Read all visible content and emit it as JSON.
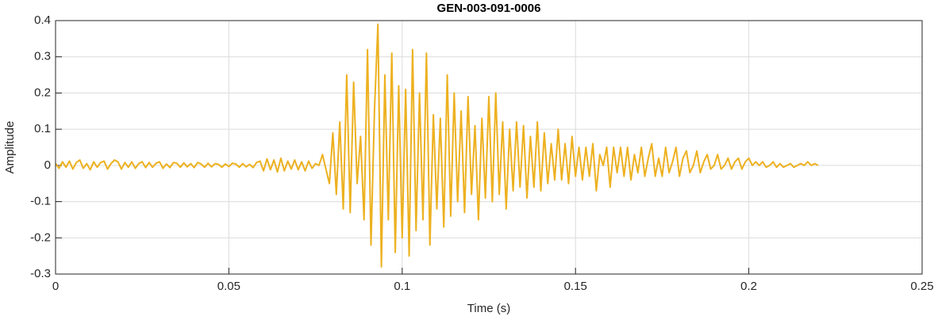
{
  "chart_data": {
    "type": "line",
    "title": "GEN-003-091-0006",
    "xlabel": "Time (s)",
    "ylabel": "Amplitude",
    "xlim": [
      0,
      0.25
    ],
    "ylim": [
      -0.3,
      0.4
    ],
    "xticks": [
      0,
      0.05,
      0.1,
      0.15,
      0.2,
      0.25
    ],
    "yticks": [
      -0.3,
      -0.2,
      -0.1,
      0,
      0.1,
      0.2,
      0.3,
      0.4
    ],
    "grid": true,
    "x": [
      0,
      0.001,
      0.002,
      0.003,
      0.004,
      0.005,
      0.006,
      0.007,
      0.008,
      0.009,
      0.01,
      0.011,
      0.012,
      0.013,
      0.014,
      0.015,
      0.016,
      0.017,
      0.018,
      0.019,
      0.02,
      0.021,
      0.022,
      0.023,
      0.024,
      0.025,
      0.026,
      0.027,
      0.028,
      0.029,
      0.03,
      0.031,
      0.032,
      0.033,
      0.034,
      0.035,
      0.036,
      0.037,
      0.038,
      0.039,
      0.04,
      0.041,
      0.042,
      0.043,
      0.044,
      0.045,
      0.046,
      0.047,
      0.048,
      0.049,
      0.05,
      0.051,
      0.052,
      0.053,
      0.054,
      0.055,
      0.056,
      0.057,
      0.058,
      0.059,
      0.06,
      0.061,
      0.062,
      0.063,
      0.064,
      0.065,
      0.066,
      0.067,
      0.068,
      0.069,
      0.07,
      0.071,
      0.072,
      0.073,
      0.074,
      0.075,
      0.076,
      0.077,
      0.078,
      0.079,
      0.08,
      0.081,
      0.082,
      0.083,
      0.084,
      0.085,
      0.086,
      0.087,
      0.088,
      0.089,
      0.09,
      0.091,
      0.092,
      0.093,
      0.094,
      0.095,
      0.096,
      0.097,
      0.098,
      0.099,
      0.1,
      0.101,
      0.102,
      0.103,
      0.104,
      0.105,
      0.106,
      0.107,
      0.108,
      0.109,
      0.11,
      0.111,
      0.112,
      0.113,
      0.114,
      0.115,
      0.116,
      0.117,
      0.118,
      0.119,
      0.12,
      0.121,
      0.122,
      0.123,
      0.124,
      0.125,
      0.126,
      0.127,
      0.128,
      0.129,
      0.13,
      0.131,
      0.132,
      0.133,
      0.134,
      0.135,
      0.136,
      0.137,
      0.138,
      0.139,
      0.14,
      0.141,
      0.142,
      0.143,
      0.144,
      0.145,
      0.146,
      0.147,
      0.148,
      0.149,
      0.15,
      0.151,
      0.152,
      0.153,
      0.154,
      0.155,
      0.156,
      0.157,
      0.158,
      0.159,
      0.16,
      0.161,
      0.162,
      0.163,
      0.164,
      0.165,
      0.166,
      0.167,
      0.168,
      0.169,
      0.17,
      0.171,
      0.172,
      0.173,
      0.174,
      0.175,
      0.176,
      0.177,
      0.178,
      0.179,
      0.18,
      0.181,
      0.182,
      0.183,
      0.184,
      0.185,
      0.186,
      0.187,
      0.188,
      0.189,
      0.19,
      0.191,
      0.192,
      0.193,
      0.194,
      0.195,
      0.196,
      0.197,
      0.198,
      0.199,
      0.2,
      0.201,
      0.202,
      0.203,
      0.204,
      0.205,
      0.206,
      0.207,
      0.208,
      0.209,
      0.21,
      0.211,
      0.212,
      0.213,
      0.214,
      0.215,
      0.216,
      0.217,
      0.218,
      0.219,
      0.22
    ],
    "series": [
      {
        "color": "#EDB120",
        "values": [
          0.005,
          -0.008,
          0.01,
          -0.005,
          0.012,
          -0.01,
          0.008,
          0.015,
          -0.008,
          0.005,
          -0.012,
          0.01,
          -0.005,
          0.008,
          0.012,
          -0.01,
          0.005,
          0.015,
          0.01,
          -0.01,
          0.008,
          -0.005,
          0.01,
          -0.008,
          0.005,
          0.01,
          -0.006,
          0.008,
          -0.005,
          0.006,
          0.01,
          -0.008,
          0.004,
          -0.006,
          0.008,
          0.006,
          -0.005,
          0.007,
          -0.004,
          0.005,
          -0.006,
          0.008,
          0.004,
          -0.005,
          0.006,
          -0.004,
          0.005,
          0.003,
          -0.005,
          0.004,
          -0.003,
          0.006,
          0.004,
          -0.005,
          0.005,
          -0.004,
          0.003,
          -0.006,
          0.008,
          0.012,
          -0.015,
          0.018,
          -0.012,
          0.015,
          -0.018,
          0.02,
          -0.015,
          0.012,
          -0.01,
          0.015,
          -0.012,
          0.01,
          -0.015,
          0.012,
          -0.008,
          0.005,
          0.0,
          0.03,
          -0.01,
          -0.05,
          0.09,
          -0.08,
          0.12,
          -0.12,
          0.25,
          -0.13,
          0.23,
          -0.05,
          0.08,
          -0.15,
          0.32,
          -0.22,
          0.15,
          0.39,
          -0.28,
          0.25,
          -0.15,
          0.31,
          -0.24,
          0.22,
          -0.2,
          0.21,
          -0.25,
          0.32,
          -0.18,
          0.2,
          -0.15,
          0.31,
          -0.22,
          0.14,
          -0.12,
          0.13,
          -0.17,
          0.25,
          -0.14,
          0.2,
          -0.1,
          0.15,
          -0.13,
          0.19,
          -0.08,
          0.11,
          -0.15,
          0.13,
          -0.09,
          0.19,
          -0.1,
          0.2,
          -0.08,
          0.12,
          -0.12,
          0.1,
          -0.07,
          0.12,
          -0.06,
          0.11,
          -0.09,
          0.08,
          -0.06,
          0.12,
          -0.07,
          0.09,
          -0.05,
          0.06,
          -0.04,
          0.1,
          -0.04,
          0.06,
          -0.05,
          0.08,
          -0.03,
          0.05,
          -0.04,
          0.05,
          -0.03,
          0.06,
          -0.07,
          0.03,
          0.0,
          0.05,
          -0.06,
          0.05,
          -0.02,
          0.05,
          -0.03,
          0.05,
          -0.04,
          0.03,
          -0.02,
          0.05,
          -0.03,
          0.02,
          0.06,
          -0.03,
          0.02,
          -0.03,
          0.05,
          -0.02,
          0.01,
          0.05,
          -0.03,
          0.02,
          0.04,
          -0.02,
          0.0,
          0.04,
          -0.02,
          0.01,
          0.03,
          -0.01,
          0.0,
          0.03,
          -0.01,
          0.0,
          0.02,
          -0.01,
          0.01,
          0.02,
          -0.01,
          0.01,
          0.02,
          0.0,
          0.01,
          0.0,
          0.01,
          -0.005,
          0.0,
          0.01,
          -0.005,
          0.005,
          -0.005,
          0.0,
          0.005,
          -0.005,
          0.0,
          0.005,
          0.0,
          0.01,
          0.0,
          0.005,
          0.0
        ]
      }
    ]
  }
}
